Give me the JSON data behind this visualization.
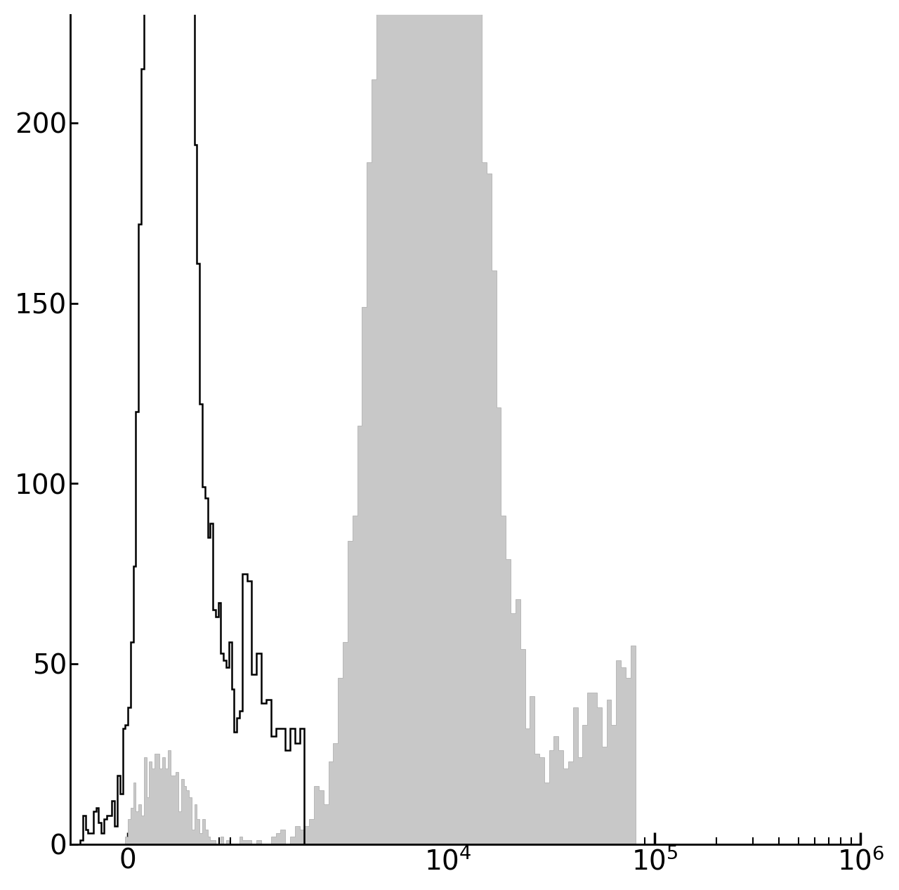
{
  "title": "",
  "background_color": "#ffffff",
  "ylim": [
    0,
    230
  ],
  "yticks": [
    0,
    50,
    100,
    150,
    200
  ],
  "symlog_linthresh": 1000,
  "x_min": -500,
  "x_max": 1000000,
  "figsize": [
    12.8,
    12.67
  ],
  "dpi": 100,
  "spine_linewidth": 2.0,
  "tick_labelsize": 28,
  "gray_fill_color": "#c8c8c8",
  "gray_edge_color": "#a8a8a8",
  "black_line_color": "#000000",
  "black_seed": 42,
  "gray_seed": 123
}
